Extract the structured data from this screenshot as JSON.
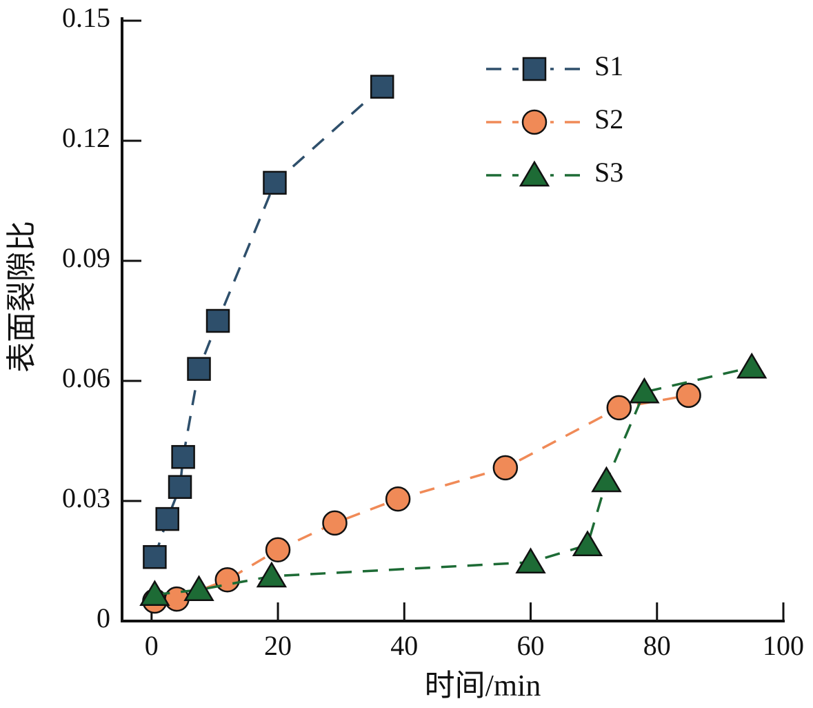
{
  "chart_data": {
    "type": "line",
    "xlabel": "时间/min",
    "ylabel": "表面裂隙比",
    "xlim": [
      -5,
      100
    ],
    "xticks": [
      0,
      20,
      40,
      60,
      80,
      100
    ],
    "ylim": [
      0,
      0.15
    ],
    "yticks": [
      0,
      0.03,
      0.06,
      0.09,
      0.12,
      0.15
    ],
    "legend": "upper right",
    "series": [
      {
        "name": "S1",
        "color": "#2e4f6b",
        "marker": "square",
        "x": [
          0.5,
          2.5,
          4.5,
          5,
          7.5,
          10.5,
          19.5,
          36.5
        ],
        "values": [
          0.016,
          0.0255,
          0.0335,
          0.041,
          0.063,
          0.075,
          0.1095,
          0.1335
        ]
      },
      {
        "name": "S2",
        "color": "#f08a57",
        "marker": "circle",
        "x": [
          0.5,
          4,
          12,
          20,
          29,
          39,
          56,
          74,
          85
        ],
        "values": [
          0.005,
          0.0055,
          0.0103,
          0.0178,
          0.0245,
          0.0305,
          0.0383,
          0.0533,
          0.0564
        ]
      },
      {
        "name": "S3",
        "color": "#1d6b35",
        "marker": "triangle",
        "x": [
          0.5,
          7.5,
          19,
          60,
          69,
          72,
          78,
          95
        ],
        "values": [
          0.0066,
          0.0078,
          0.0112,
          0.0147,
          0.019,
          0.035,
          0.0572,
          0.0634
        ]
      }
    ]
  }
}
